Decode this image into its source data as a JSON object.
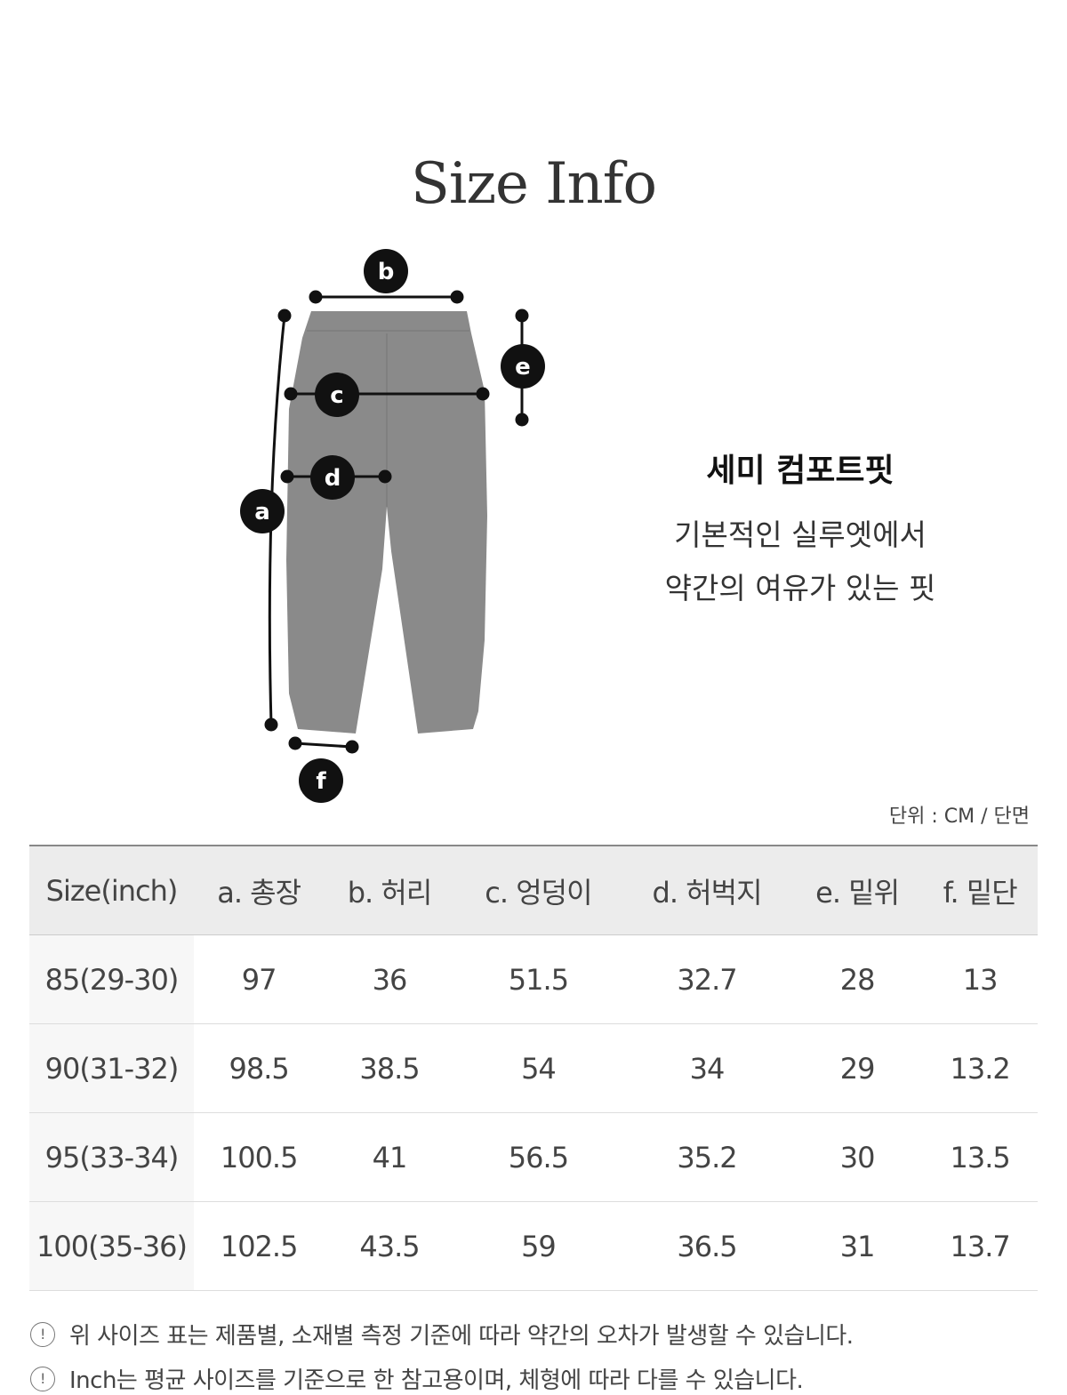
{
  "title": "Size Info",
  "diagram": {
    "labels": [
      "a",
      "b",
      "c",
      "d",
      "e",
      "f"
    ],
    "garment_color": "#8a8a8a"
  },
  "fit": {
    "title": "세미 컴포트핏",
    "desc_line1": "기본적인 실루엣에서",
    "desc_line2": "약간의 여유가 있는 핏"
  },
  "unit": "단위 : CM  / 단면",
  "table": {
    "headers": [
      "Size(inch)",
      "a. 총장",
      "b. 허리",
      "c. 엉덩이",
      "d. 허벅지",
      "e. 밑위",
      "f. 밑단"
    ],
    "rows": [
      [
        "85(29-30)",
        "97",
        "36",
        "51.5",
        "32.7",
        "28",
        "13"
      ],
      [
        "90(31-32)",
        "98.5",
        "38.5",
        "54",
        "34",
        "29",
        "13.2"
      ],
      [
        "95(33-34)",
        "100.5",
        "41",
        "56.5",
        "35.2",
        "30",
        "13.5"
      ],
      [
        "100(35-36)",
        "102.5",
        "43.5",
        "59",
        "36.5",
        "31",
        "13.7"
      ]
    ]
  },
  "notes": [
    {
      "icon": "exclamation-circle-icon",
      "text": "위 사이즈 표는 제품별, 소재별 측정 기준에 따라 약간의 오차가 발생할 수 있습니다."
    },
    {
      "icon": "exclamation-circle-icon",
      "text": "Inch는 평균 사이즈를 기준으로 한 참고용이며, 체형에 따라 다를 수 있습니다."
    }
  ]
}
